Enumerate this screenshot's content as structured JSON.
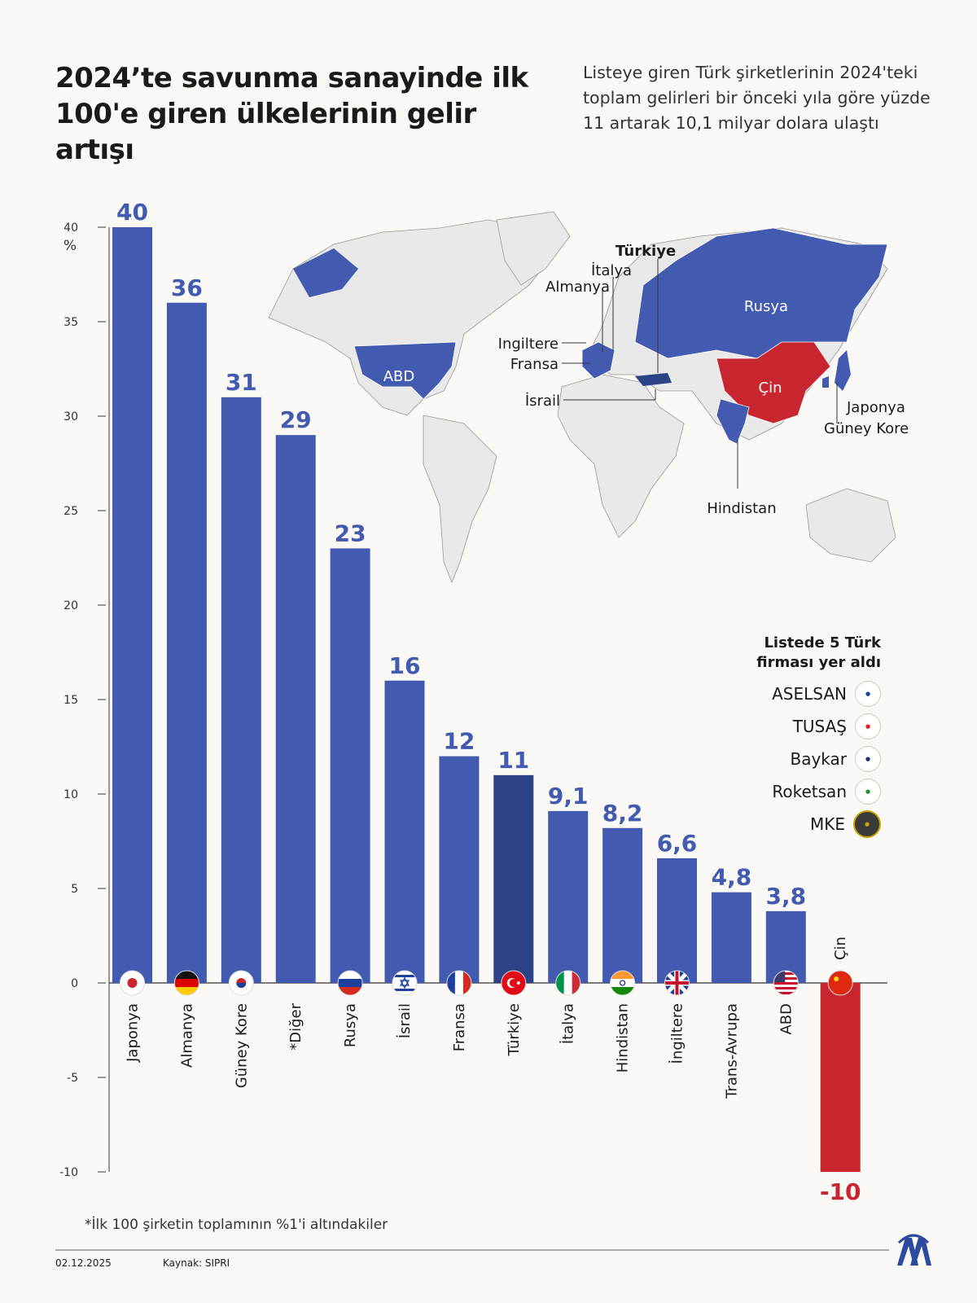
{
  "title": "2024’te savunma sanayinde ilk 100'e giren ülkelerinin gelir artışı",
  "subtitle": "Listeye giren Türk şirketlerinin 2024'teki toplam gelirleri bir önceki yıla göre yüzde 11 artarak 10,1 milyar dolara ulaştı",
  "colors": {
    "bar": "#425bb0",
    "highlight": "#2c4386",
    "negative": "#c9252f",
    "background": "#faf9f5"
  },
  "chart_data": {
    "type": "bar",
    "ylabel": "%",
    "ylim": [
      -10,
      40
    ],
    "yticks": [
      40,
      35,
      30,
      25,
      20,
      15,
      10,
      5,
      0,
      -5,
      -10
    ],
    "grid": false,
    "categories": [
      "Japonya",
      "Almanya",
      "Güney Kore",
      "*Diğer",
      "Rusya",
      "İsrail",
      "Fransa",
      "Türkiye",
      "İtalya",
      "Hindistan",
      "İngiltere",
      "Trans-Avrupa",
      "ABD",
      "Çin"
    ],
    "values": [
      40,
      36,
      31,
      29,
      23,
      16,
      12,
      11,
      9.1,
      8.2,
      6.6,
      4.8,
      3.8,
      -10
    ],
    "value_labels": [
      "40",
      "36",
      "31",
      "29",
      "23",
      "16",
      "12",
      "11",
      "9,1",
      "8,2",
      "6,6",
      "4,8",
      "3,8",
      "-10"
    ],
    "flags": [
      "japan-flag",
      "germany-flag",
      "south-korea-flag",
      "",
      "russia-flag",
      "israel-flag",
      "france-flag",
      "turkey-flag",
      "italy-flag",
      "india-flag",
      "uk-flag",
      "",
      "usa-flag",
      "china-flag"
    ]
  },
  "map": {
    "labels": {
      "turkiye": "Türkiye",
      "italya": "İtalya",
      "almanya": "Almanya",
      "rusya": "Rusya",
      "abd": "ABD",
      "ingiltere": "Ingiltere",
      "fransa": "Fransa",
      "israil": "İsrail",
      "cin": "Çin",
      "japonya": "Japonya",
      "guney_kore": "Güney Kore",
      "hindistan": "Hindistan"
    }
  },
  "firms": {
    "title_line1": "Listede 5 Türk",
    "title_line2": "firması yer aldı",
    "items": [
      {
        "name": "ASELSAN",
        "logo": "aselsan"
      },
      {
        "name": "TUSAŞ",
        "logo": "tusas"
      },
      {
        "name": "Baykar",
        "logo": "baykar"
      },
      {
        "name": "Roketsan",
        "logo": "roketsan"
      },
      {
        "name": "MKE",
        "logo": "mke"
      }
    ]
  },
  "footnote": "*İlk 100 şirketin toplamının %1'i altındakiler",
  "footer": {
    "date": "02.12.2025",
    "source": "Kaynak: SIPRI"
  }
}
